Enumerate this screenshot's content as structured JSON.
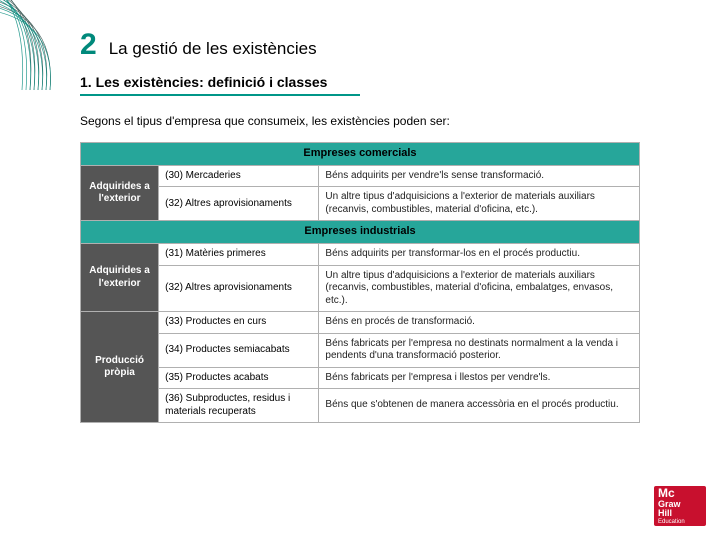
{
  "chapter": {
    "num": "2",
    "title": "La gestió de les existències"
  },
  "section_title": "1. Les existències: definició i classes",
  "intro_text": "Segons el tipus d'empresa que consumeix, les existències poden ser:",
  "deco": {
    "arc_color": "#00897b",
    "dark_color": "#0b2e2a"
  },
  "table": {
    "header_bg": "#26a69a",
    "sidecat_bg": "#555555",
    "sidecat_color": "#ffffff",
    "border_color": "#b0b0b0",
    "groups": [
      {
        "header": "Empreses comercials",
        "blocks": [
          {
            "side": "Adquirides a l'exterior",
            "rows": [
              {
                "code": "(30) Mercaderies",
                "desc": "Béns adquirits per vendre'ls sense transformació."
              },
              {
                "code": "(32) Altres aprovisionaments",
                "desc": "Un altre tipus d'adquisicions a l'exterior de materials auxiliars (recanvis, combustibles, material d'oficina, etc.)."
              }
            ]
          }
        ]
      },
      {
        "header": "Empreses industrials",
        "blocks": [
          {
            "side": "Adquirides a l'exterior",
            "rows": [
              {
                "code": "(31) Matèries primeres",
                "desc": "Béns adquirits per transformar-los en el procés productiu."
              },
              {
                "code": "(32) Altres aprovisionaments",
                "desc": "Un altre tipus d'adquisicions a l'exterior de materials auxiliars (recanvis, combustibles, material d'oficina, embalatges, envasos, etc.)."
              }
            ]
          },
          {
            "side": "Producció pròpia",
            "rows": [
              {
                "code": "(33) Productes en curs",
                "desc": "Béns en procés de transformació."
              },
              {
                "code": "(34) Productes semiacabats",
                "desc": "Béns fabricats per l'empresa no destinats normalment a la venda i pendents d'una transformació posterior."
              },
              {
                "code": "(35) Productes acabats",
                "desc": "Béns fabricats per l'empresa i llestos per vendre'ls."
              },
              {
                "code": "(36) Subproductes, residus i materials recuperats",
                "desc": "Béns que s'obtenen de manera accessòria en el procés productiu."
              }
            ]
          }
        ]
      }
    ]
  },
  "logo": {
    "line1": "Mc",
    "line2": "Graw",
    "line3": "Hill",
    "sub": "Education",
    "bg": "#c8102e"
  }
}
